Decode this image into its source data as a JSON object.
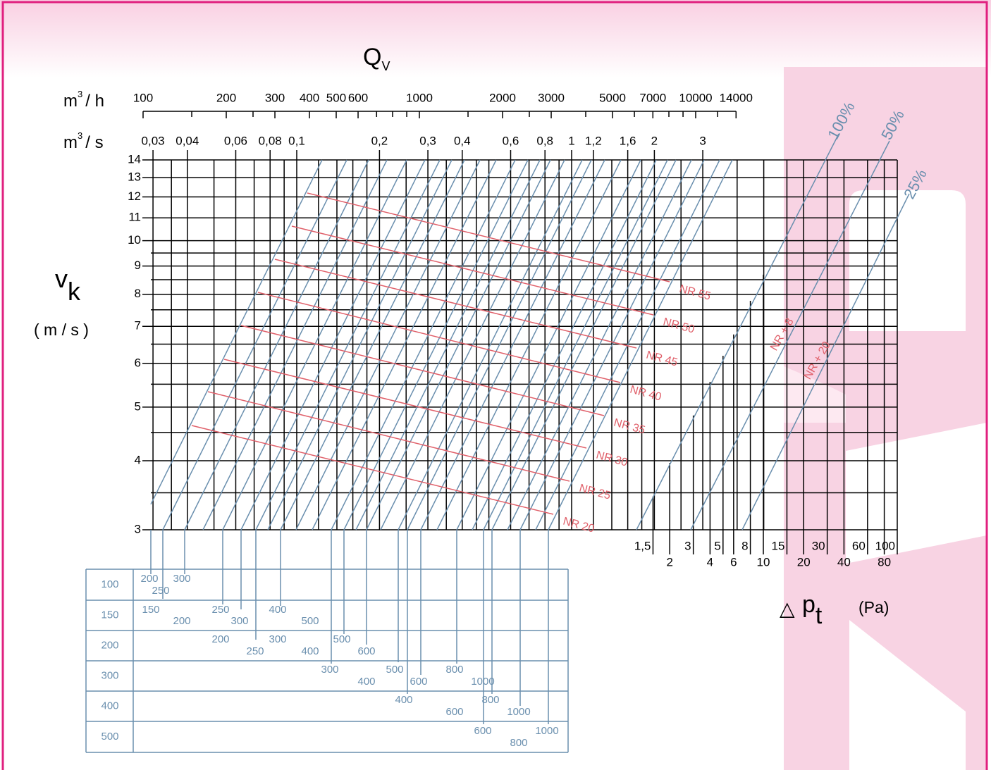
{
  "header": {
    "title": "Q",
    "title_sub": "V"
  },
  "m3h": {
    "unit": "m",
    "sup": "3",
    "tail": "/ h",
    "ticks": [
      100,
      200,
      300,
      400,
      500,
      600,
      1000,
      2000,
      3000,
      5000,
      7000,
      10000,
      14000
    ]
  },
  "m3s": {
    "unit": "m",
    "sup": "3",
    "tail": "/ s",
    "ticks": [
      {
        "value": 0.03,
        "label": "0,03"
      },
      {
        "value": 0.04,
        "label": "0,04"
      },
      {
        "value": 0.06,
        "label": "0,06"
      },
      {
        "value": 0.08,
        "label": "0,08"
      },
      {
        "value": 0.1,
        "label": "0,1"
      },
      {
        "value": 0.2,
        "label": "0,2"
      },
      {
        "value": 0.3,
        "label": "0,3"
      },
      {
        "value": 0.4,
        "label": "0,4"
      },
      {
        "value": 0.6,
        "label": "0,6"
      },
      {
        "value": 0.8,
        "label": "0,8"
      },
      1,
      {
        "value": 1.2,
        "label": "1,2"
      },
      {
        "value": 1.6,
        "label": "1,6"
      },
      2,
      3
    ]
  },
  "velocity": {
    "symbol": "v",
    "sub": "k",
    "unit": "( m / s )",
    "ticks": [
      3,
      4,
      5,
      6,
      7,
      8,
      9,
      10,
      11,
      12,
      13,
      14
    ]
  },
  "pressure": {
    "symbol": "p",
    "sub": "t",
    "unit": "(Pa)",
    "ticks": [
      {
        "value": 1.5,
        "label": "1,5"
      },
      2,
      3,
      4,
      5,
      6,
      8,
      10,
      15,
      20,
      30,
      40,
      60,
      80,
      100
    ]
  },
  "percent_labels": [
    "100%",
    "50%",
    "25%"
  ],
  "nr_labels": [
    "NR 20",
    "NR 25",
    "NR 30",
    "NR 35",
    "NR 40",
    "NR 45",
    "NR 50",
    "NR 55"
  ],
  "nr_side_labels": [
    "NR + 8",
    "NR + 20"
  ],
  "table": {
    "row_labels": [
      "100",
      "150",
      "200",
      "300",
      "400",
      "500"
    ],
    "cells": [
      "200",
      "250",
      "300",
      "150",
      "200",
      "250",
      "300",
      "400",
      "500",
      "200",
      "250",
      "300",
      "400",
      "500",
      "600",
      "300",
      "400",
      "500",
      "600",
      "800",
      "1000",
      "400",
      "600",
      "800",
      "1000",
      "600",
      "800",
      "1000"
    ]
  }
}
